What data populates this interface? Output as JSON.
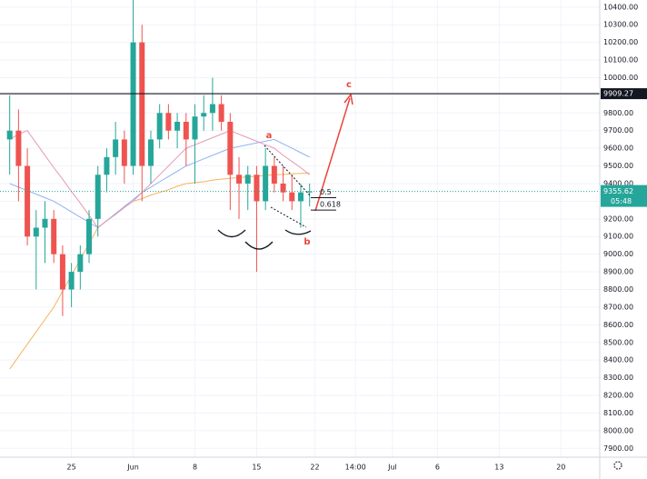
{
  "chart_data": {
    "type": "candlestick",
    "x": [
      0,
      1,
      2,
      3,
      4,
      5,
      6,
      7,
      8,
      9,
      10,
      11,
      12,
      13,
      14,
      15,
      16,
      17,
      18,
      19,
      20,
      21,
      22,
      23,
      24,
      25,
      26,
      27,
      28,
      29,
      30,
      31,
      32,
      33,
      34
    ],
    "open": [
      9650,
      9700,
      9500,
      9100,
      9150,
      9200,
      9000,
      8800,
      8900,
      9000,
      9200,
      9450,
      9550,
      9650,
      9500,
      10200,
      9500,
      9650,
      9800,
      9700,
      9750,
      9650,
      9780,
      9800,
      9850,
      9750,
      9450,
      9400,
      9450,
      9300,
      9500,
      9400,
      9350,
      9300,
      9350
    ],
    "high": [
      9900,
      9820,
      9600,
      9250,
      9300,
      9250,
      9050,
      8950,
      9050,
      9250,
      9500,
      9600,
      9750,
      9700,
      10450,
      10300,
      9700,
      9850,
      9850,
      9800,
      9800,
      9850,
      9900,
      10000,
      9900,
      9800,
      9550,
      9500,
      9500,
      9600,
      9550,
      9500,
      9450,
      9400,
      9400
    ],
    "low": [
      9450,
      9300,
      9050,
      8800,
      8950,
      8950,
      8650,
      8700,
      8800,
      8950,
      9100,
      9350,
      9450,
      9400,
      9450,
      9300,
      9400,
      9600,
      9650,
      9600,
      9500,
      9400,
      9700,
      9700,
      9700,
      9250,
      9200,
      9250,
      8900,
      9250,
      9350,
      9300,
      9250,
      9150,
      9270
    ],
    "close": [
      9700,
      9500,
      9100,
      9150,
      9200,
      9000,
      8800,
      8900,
      9000,
      9200,
      9450,
      9550,
      9650,
      9500,
      10200,
      9500,
      9650,
      9800,
      9700,
      9750,
      9650,
      9780,
      9800,
      9850,
      9750,
      9450,
      9400,
      9450,
      9300,
      9500,
      9400,
      9350,
      9300,
      9350,
      9355.62
    ],
    "color_up": "#26a69a",
    "color_down": "#ef5350",
    "moving_averages": [
      {
        "color": "#f7b35c",
        "values": [
          8350,
          8420,
          8490,
          8560,
          8630,
          8700,
          8790,
          8880,
          8970,
          9060,
          9150,
          9190,
          9225,
          9265,
          9300,
          9315,
          9335,
          9350,
          9365,
          9385,
          9400,
          9405,
          9410,
          9420,
          9425,
          9430,
          9434,
          9438,
          9442,
          9446,
          9450,
          9452,
          9455,
          9458,
          9460
        ]
      },
      {
        "color": "#8fb3f0",
        "values": [
          9400,
          9380,
          9360,
          9340,
          9320,
          9300,
          9270,
          9240,
          9210,
          9180,
          9150,
          9190,
          9230,
          9270,
          9310,
          9350,
          9380,
          9410,
          9440,
          9470,
          9500,
          9520,
          9540,
          9560,
          9580,
          9600,
          9610,
          9620,
          9630,
          9640,
          9650,
          9625,
          9600,
          9575,
          9550
        ]
      },
      {
        "color": "#e59ab5",
        "values": [
          9650,
          9680,
          9700,
          9630,
          9560,
          9490,
          9425,
          9355,
          9290,
          9220,
          9150,
          9190,
          9225,
          9265,
          9300,
          9350,
          9400,
          9450,
          9500,
          9550,
          9600,
          9620,
          9640,
          9660,
          9680,
          9700,
          9680,
          9660,
          9640,
          9620,
          9600,
          9560,
          9525,
          9490,
          9450
        ]
      }
    ],
    "xlim": [
      -1.1,
      66.9
    ],
    "xticks": [
      {
        "value": 7,
        "label": "25"
      },
      {
        "value": 14,
        "label": "Jun"
      },
      {
        "value": 21,
        "label": "8"
      },
      {
        "value": 28,
        "label": "15"
      },
      {
        "value": 34.6,
        "label": "22"
      },
      {
        "value": 39.2,
        "label": "14:00"
      },
      {
        "value": 43.4,
        "label": "Jul"
      },
      {
        "value": 48.5,
        "label": "6"
      },
      {
        "value": 55.5,
        "label": "13"
      },
      {
        "value": 62.5,
        "label": "20"
      }
    ],
    "ylim": [
      7850,
      10440
    ],
    "yticks": [
      {
        "value": 7900,
        "label": "7900.00"
      },
      {
        "value": 8000,
        "label": "8000.00"
      },
      {
        "value": 8100,
        "label": "8100.00"
      },
      {
        "value": 8200,
        "label": "8200.00"
      },
      {
        "value": 8300,
        "label": "8300.00"
      },
      {
        "value": 8400,
        "label": "8400.00"
      },
      {
        "value": 8500,
        "label": "8500.00"
      },
      {
        "value": 8600,
        "label": "8600.00"
      },
      {
        "value": 8700,
        "label": "8700.00"
      },
      {
        "value": 8800,
        "label": "8800.00"
      },
      {
        "value": 8900,
        "label": "8900.00"
      },
      {
        "value": 9000,
        "label": "9000.00"
      },
      {
        "value": 9100,
        "label": "9100.00"
      },
      {
        "value": 9200,
        "label": "9200.00"
      },
      {
        "value": 9300,
        "label": "9300.00"
      },
      {
        "value": 9400,
        "label": "9400.00"
      },
      {
        "value": 9500,
        "label": "9500.00"
      },
      {
        "value": 9600,
        "label": "9600.00"
      },
      {
        "value": 9700,
        "label": "9700.00"
      },
      {
        "value": 9800,
        "label": "9800.00"
      },
      {
        "value": 9900,
        "label": "9900.00"
      },
      {
        "value": 10000,
        "label": "10000.00"
      },
      {
        "value": 10100,
        "label": "10100.00"
      },
      {
        "value": 10200,
        "label": "10200.00"
      },
      {
        "value": 10300,
        "label": "10300.00"
      },
      {
        "value": 10400,
        "label": "10400.00"
      }
    ],
    "grid": true,
    "resistance": {
      "value": 9909.27,
      "label": "9909.27",
      "color": "#131722"
    },
    "last_price": {
      "value": 9355.62,
      "label": "9355.62",
      "color": "#26a69a"
    },
    "countdown": "05:48",
    "wave_labels": [
      "a",
      "b",
      "c"
    ],
    "fib_levels": [
      {
        "value": 9320,
        "label": "0.5"
      },
      {
        "value": 9250,
        "label": "0.618"
      }
    ]
  }
}
